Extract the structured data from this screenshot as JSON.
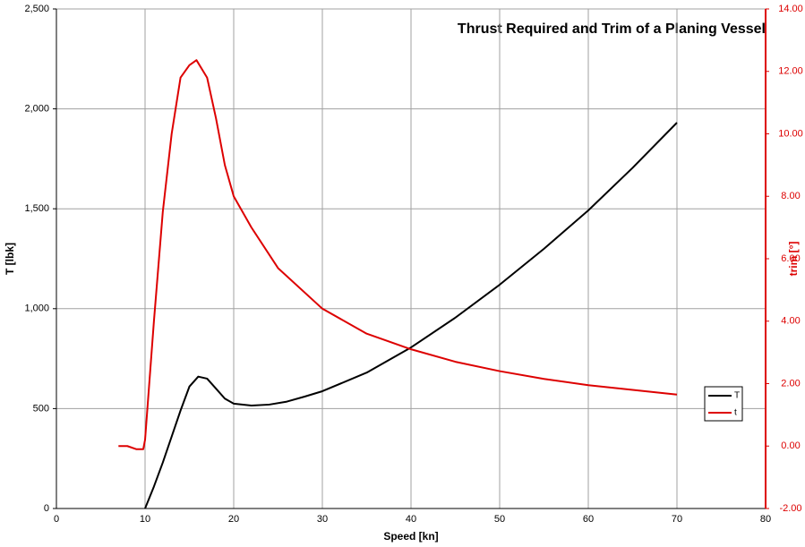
{
  "chart_data": {
    "type": "line",
    "title": "Thrust Required and Trim of a Planing Vessel",
    "xlabel": "Speed [kn]",
    "ylabel": "T [lbk]",
    "y2label": "trim [°]",
    "xlim": [
      0,
      80
    ],
    "xticks": [
      0,
      10,
      20,
      30,
      40,
      50,
      60,
      70,
      80
    ],
    "ylim": [
      0,
      2500
    ],
    "yticks": [
      0,
      500,
      {
        "value": 1000,
        "label": "1,000"
      },
      {
        "value": 1500,
        "label": "1,500"
      },
      {
        "value": 2000,
        "label": "2,000"
      },
      {
        "value": 2500,
        "label": "2,500"
      }
    ],
    "y2lim": [
      -2,
      14
    ],
    "y2ticks": [
      {
        "value": -2,
        "label": "-2.00"
      },
      {
        "value": 0,
        "label": "0.00"
      },
      {
        "value": 2,
        "label": "2.00"
      },
      {
        "value": 4,
        "label": "4.00"
      },
      {
        "value": 6,
        "label": "6.00"
      },
      {
        "value": 8,
        "label": "8.00"
      },
      {
        "value": 10,
        "label": "10.00"
      },
      {
        "value": 12,
        "label": "12.00"
      },
      {
        "value": 14,
        "label": "14.00"
      }
    ],
    "grid": true,
    "legend": "right",
    "series": [
      {
        "name": "T",
        "color": "#000000",
        "x": [
          10,
          11,
          12,
          13,
          14,
          15,
          16,
          17,
          18,
          19,
          20,
          22,
          24,
          26,
          28,
          30,
          35,
          40,
          45,
          50,
          55,
          60,
          65,
          70
        ],
        "values": [
          0,
          110,
          230,
          360,
          490,
          610,
          660,
          650,
          600,
          550,
          525,
          515,
          520,
          535,
          560,
          587,
          680,
          806,
          955,
          1120,
          1300,
          1492,
          1705,
          1931
        ]
      },
      {
        "name": "t",
        "color": "#dd0000",
        "axis": "y2",
        "x": [
          7,
          8,
          9,
          9.8,
          10,
          11,
          12,
          13,
          14,
          15,
          15.8,
          17,
          18,
          19,
          20,
          22,
          25,
          30,
          35,
          40,
          45,
          50,
          55,
          60,
          65,
          70
        ],
        "values": [
          0,
          0,
          -0.1,
          -0.1,
          0.2,
          4,
          7.5,
          10,
          11.8,
          12.2,
          12.36,
          11.8,
          10.5,
          9,
          8,
          7,
          5.7,
          4.4,
          3.6,
          3.1,
          2.7,
          2.4,
          2.15,
          1.95,
          1.8,
          1.65
        ]
      }
    ]
  }
}
